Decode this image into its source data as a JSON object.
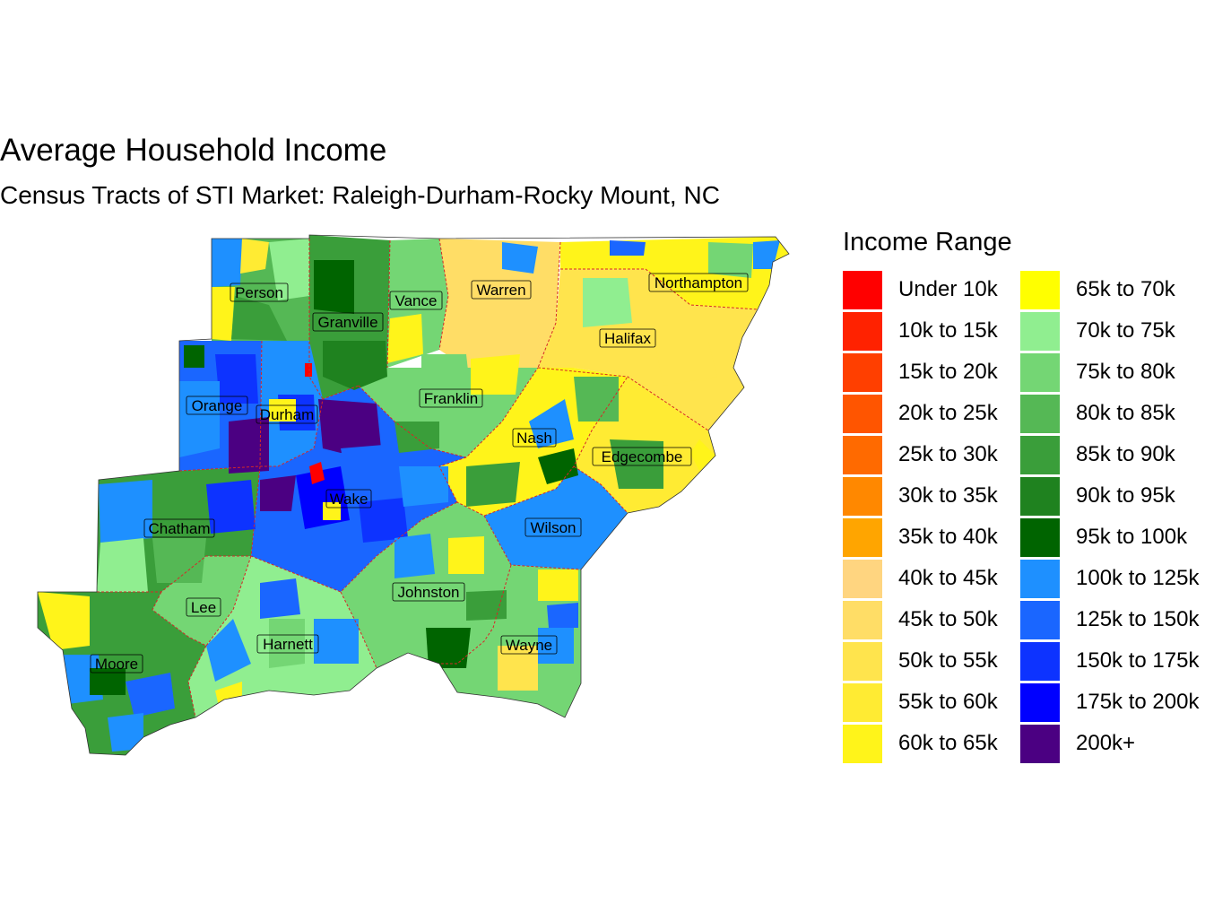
{
  "title": "Average Household Income",
  "subtitle": "Census Tracts of STI Market: Raleigh-Durham-Rocky Mount, NC",
  "legend": {
    "title": "Income Range",
    "items": [
      {
        "label": "Under 10k",
        "color": "#FF0000"
      },
      {
        "label": "10k to 15k",
        "color": "#FF2200"
      },
      {
        "label": "15k to 20k",
        "color": "#FF3F00"
      },
      {
        "label": "20k to 25k",
        "color": "#FF5500"
      },
      {
        "label": "25k to 30k",
        "color": "#FF6A00"
      },
      {
        "label": "30k to 35k",
        "color": "#FF8800"
      },
      {
        "label": "35k to 40k",
        "color": "#FFA500"
      },
      {
        "label": "40k to 45k",
        "color": "#FFD580"
      },
      {
        "label": "45k to 50k",
        "color": "#FFDD66"
      },
      {
        "label": "50k to 55k",
        "color": "#FFE44D"
      },
      {
        "label": "55k to 60k",
        "color": "#FFEB33"
      },
      {
        "label": "60k to 65k",
        "color": "#FFF41A"
      },
      {
        "label": "65k to 70k",
        "color": "#FFFF00"
      },
      {
        "label": "70k to 75k",
        "color": "#90EE90"
      },
      {
        "label": "75k to 80k",
        "color": "#74D674"
      },
      {
        "label": "80k to 85k",
        "color": "#55B855"
      },
      {
        "label": "85k to 90k",
        "color": "#3A9E3A"
      },
      {
        "label": "90k to 95k",
        "color": "#1F821F"
      },
      {
        "label": "95k to 100k",
        "color": "#006400"
      },
      {
        "label": "100k to 125k",
        "color": "#1E90FF"
      },
      {
        "label": "125k to 150k",
        "color": "#1A66FF"
      },
      {
        "label": "150k to 175k",
        "color": "#0D33FF"
      },
      {
        "label": "175k to 200k",
        "color": "#0000FF"
      },
      {
        "label": "200k+",
        "color": "#4B0082"
      }
    ]
  },
  "counties": [
    {
      "name": "Person"
    },
    {
      "name": "Granville"
    },
    {
      "name": "Vance"
    },
    {
      "name": "Warren"
    },
    {
      "name": "Northampton"
    },
    {
      "name": "Halifax"
    },
    {
      "name": "Orange"
    },
    {
      "name": "Durham"
    },
    {
      "name": "Franklin"
    },
    {
      "name": "Nash"
    },
    {
      "name": "Edgecombe"
    },
    {
      "name": "Wake"
    },
    {
      "name": "Chatham"
    },
    {
      "name": "Wilson"
    },
    {
      "name": "Johnston"
    },
    {
      "name": "Lee"
    },
    {
      "name": "Harnett"
    },
    {
      "name": "Wayne"
    },
    {
      "name": "Moore"
    }
  ]
}
